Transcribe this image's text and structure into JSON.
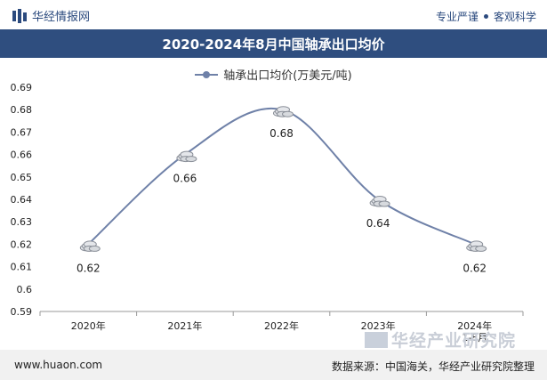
{
  "header": {
    "brand": "华经情报网",
    "tagline_left": "专业严谨",
    "tagline_right": "客观科学"
  },
  "title_bar": "2020-2024年8月中国轴承出口均价",
  "legend_label": "轴承出口均价(万美元/吨)",
  "footer": {
    "website": "www.huaon.com",
    "source": "数据来源：中国海关，华经产业研究院整理",
    "watermark_logo_text": "华经产业研究院"
  },
  "colors": {
    "title_bg": "#2f4e7f",
    "line": "#6f81a8",
    "brand": "#2b4a7e"
  },
  "chart_data": {
    "type": "line",
    "title": "2020-2024年8月中国轴承出口均价",
    "categories": [
      "2020年",
      "2021年",
      "2022年",
      "2023年",
      "2024年1-8月"
    ],
    "series": [
      {
        "name": "轴承出口均价(万美元/吨)",
        "values": [
          0.62,
          0.66,
          0.68,
          0.64,
          0.62
        ]
      }
    ],
    "data_labels": [
      "0.62",
      "0.66",
      "0.68",
      "0.64",
      "0.62"
    ],
    "y_ticks": [
      "0.59",
      "0.6",
      "0.61",
      "0.62",
      "0.63",
      "0.64",
      "0.65",
      "0.66",
      "0.67",
      "0.68",
      "0.69"
    ],
    "ylim": [
      0.59,
      0.69
    ],
    "xlabel": "",
    "ylabel": "",
    "legend_position": "top-center",
    "grid": false
  }
}
